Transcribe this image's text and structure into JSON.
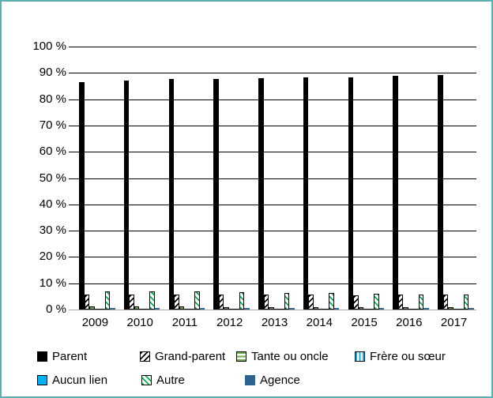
{
  "figure": {
    "border_color": "#57B1AD",
    "background_color": "#FFFFFF",
    "gridline_color": "#000000",
    "baseline_color": "#A6A6A6"
  },
  "chart_data": {
    "type": "bar",
    "title": "",
    "xlabel": "",
    "ylabel": "",
    "categories": [
      "2009",
      "2010",
      "2011",
      "2012",
      "2013",
      "2014",
      "2015",
      "2016",
      "2017"
    ],
    "y_tick_labels": [
      "100 %",
      "90 %",
      "80 %",
      "70 %",
      "60 %",
      "50 %",
      "40 %",
      "30 %",
      "20 %",
      "10 %",
      "0 %"
    ],
    "ylim": [
      0,
      100
    ],
    "y_step": 10,
    "grid": true,
    "legend_position": "bottom",
    "series": [
      {
        "name": "Parent",
        "fill": "solid",
        "color": "#000000",
        "bg": "#000000",
        "bordered": false,
        "values": [
          86.6,
          87.2,
          87.7,
          87.6,
          88.0,
          88.4,
          88.3,
          88.8,
          89.2
        ]
      },
      {
        "name": "Grand-parent",
        "fill": "diagonal-up",
        "color": "#000000",
        "bg": "#FFFFFF",
        "bordered": true,
        "values": [
          5.7,
          5.7,
          5.7,
          5.6,
          5.6,
          5.6,
          5.5,
          5.6,
          5.7
        ]
      },
      {
        "name": "Tante ou oncle",
        "fill": "horizontal",
        "color": "#70AD47",
        "bg": "#FFFFFF",
        "bordered": true,
        "values": [
          1.2,
          1.1,
          1.1,
          1.0,
          1.0,
          1.0,
          1.0,
          1.0,
          1.0
        ]
      },
      {
        "name": "Frère ou sœur",
        "fill": "vertical",
        "color": "#00B0F0",
        "bg": "#FFFFFF",
        "bordered": true,
        "values": [
          0.3,
          0.3,
          0.3,
          0.3,
          0.3,
          0.3,
          0.3,
          0.3,
          0.3
        ]
      },
      {
        "name": "Aucun lien",
        "fill": "solid",
        "color": "#00B0F0",
        "bg": "#00B0F0",
        "bordered": true,
        "values": [
          0.3,
          0.3,
          0.3,
          0.3,
          0.3,
          0.3,
          0.3,
          0.3,
          0.3
        ]
      },
      {
        "name": "Autre",
        "fill": "diagonal-down",
        "color": "#00B050",
        "bg": "#FFFFFF",
        "bordered": true,
        "values": [
          7.0,
          6.9,
          6.8,
          6.7,
          6.4,
          6.2,
          6.0,
          5.8,
          5.8
        ]
      },
      {
        "name": "Agence",
        "fill": "solid",
        "color": "#2E6490",
        "bg": "#2E6490",
        "bordered": false,
        "values": [
          0.5,
          0.5,
          0.5,
          0.5,
          0.5,
          0.5,
          0.5,
          0.5,
          0.5
        ]
      }
    ],
    "legend_rows": [
      [
        0,
        1,
        2,
        3
      ],
      [
        4,
        5,
        6
      ]
    ]
  }
}
